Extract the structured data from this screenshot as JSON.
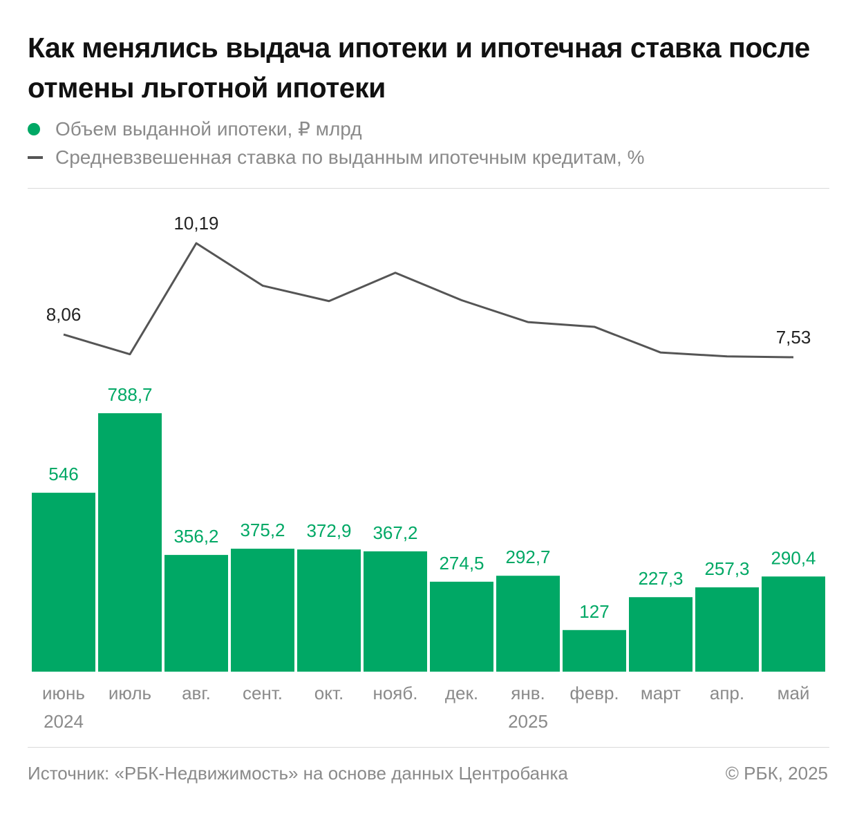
{
  "title": "Как менялись выдача ипотеки и ипотечная ставка после отмены льготной ипотеки",
  "legend": [
    {
      "label": "Объем выданной ипотеки, ₽ млрд",
      "color": "#00a865",
      "shape": "dot"
    },
    {
      "label": "Средневзвешенная ставка по выданным ипотечным кредитам, %",
      "color": "#555555",
      "shape": "dash"
    }
  ],
  "chart_data": {
    "type": "bar",
    "categories": [
      [
        "июнь",
        "2024"
      ],
      [
        "июль"
      ],
      [
        "авг."
      ],
      [
        "сент."
      ],
      [
        "окт."
      ],
      [
        "нояб."
      ],
      [
        "дек."
      ],
      [
        "янв.",
        "2025"
      ],
      [
        "февр."
      ],
      [
        "март"
      ],
      [
        "апр."
      ],
      [
        "май"
      ]
    ],
    "series": [
      {
        "name": "Объем выданной ипотеки, ₽ млрд",
        "type": "bar",
        "color": "#00a865",
        "values": [
          546,
          788.7,
          356.2,
          375.2,
          372.9,
          367.2,
          274.5,
          292.7,
          127,
          227.3,
          257.3,
          290.4
        ],
        "labels": [
          "546",
          "788,7",
          "356,2",
          "375,2",
          "372,9",
          "367,2",
          "274,5",
          "292,7",
          "127",
          "227,3",
          "257,3",
          "290,4"
        ]
      },
      {
        "name": "Средневзвешенная ставка по выданным ипотечным кредитам, %",
        "type": "line",
        "color": "#555555",
        "values": [
          8.06,
          7.6,
          10.19,
          9.2,
          8.84,
          9.5,
          8.86,
          8.35,
          8.24,
          7.64,
          7.55,
          7.53
        ],
        "labels": [
          "8,06",
          "",
          "10,19",
          "",
          "",
          "",
          "",
          "",
          "",
          "",
          "",
          "7,53"
        ]
      }
    ],
    "bar_ylim": [
      0,
      788.7
    ],
    "line_ylim": [
      7.53,
      10.19
    ]
  },
  "footer": {
    "source": "Источник: «РБК-Недвижимость» на основе данных Центробанка",
    "copyright": "© РБК, 2025"
  }
}
